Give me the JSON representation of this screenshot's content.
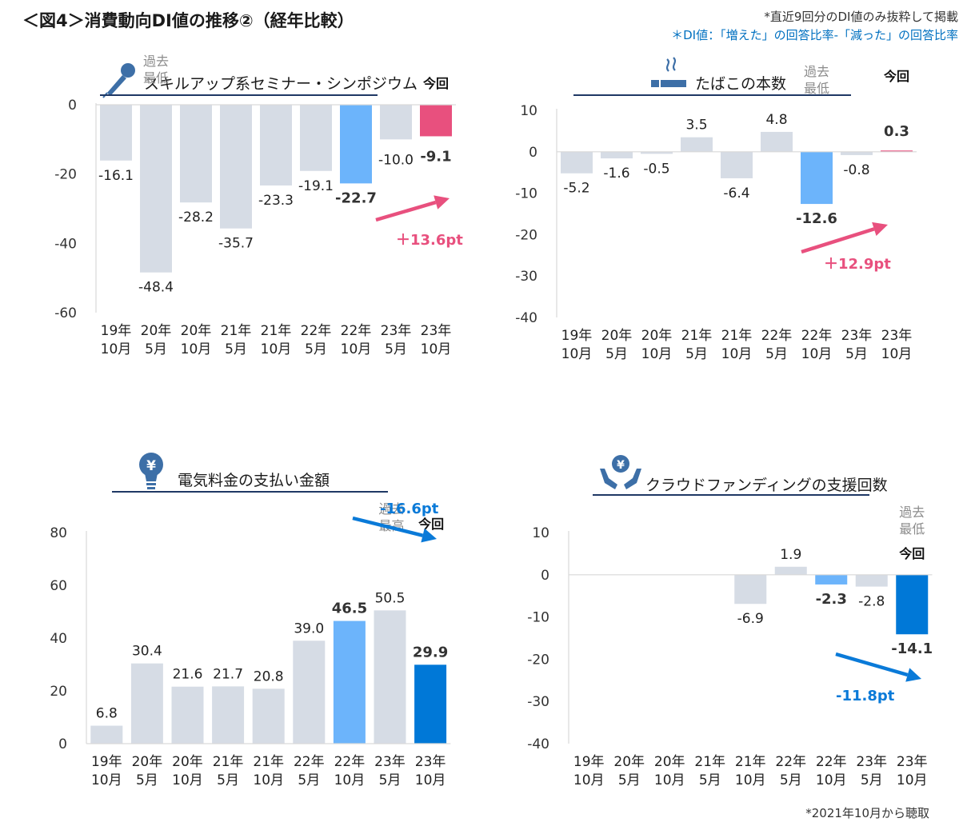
{
  "page": {
    "title": "＜図4＞消費動向DI値の推移②（経年比較）",
    "note_top": "*直近9回分のDI値のみ抜粋して掲載",
    "note_di": "＊DI値：「増えた」の回答比率-「減った」の回答比率",
    "note_bottom": "*2021年10月から聴取"
  },
  "colors": {
    "gray_bar": "#d6dce5",
    "prev_bar": "#6cb4fb",
    "current_up": "#e8507e",
    "current_down": "#0078d7",
    "arrow_up": "#e8507e",
    "arrow_down": "#0a7ad8",
    "title_line": "#1f3864",
    "icon": "#3d6fa7"
  },
  "chart_data": [
    {
      "id": "seminar",
      "type": "bar",
      "title": "スキルアップ系セミナー・シンポジウム",
      "icon": "microphone-icon",
      "categories": [
        [
          "19年",
          "10月"
        ],
        [
          "20年",
          "5月"
        ],
        [
          "20年",
          "10月"
        ],
        [
          "21年",
          "5月"
        ],
        [
          "21年",
          "10月"
        ],
        [
          "22年",
          "5月"
        ],
        [
          "22年",
          "10月"
        ],
        [
          "23年",
          "5月"
        ],
        [
          "23年",
          "10月"
        ]
      ],
      "values": [
        -16.1,
        -48.4,
        -28.2,
        -35.7,
        -23.3,
        -19.1,
        -22.7,
        -10.0,
        -9.1
      ],
      "value_labels": [
        "-16.1",
        "-48.4",
        "-28.2",
        "-35.7",
        "-23.3",
        "-19.1",
        "-22.7",
        "-10.0",
        "-9.1"
      ],
      "ylim": [
        -60,
        0
      ],
      "yticks": [
        0,
        -20,
        -40,
        -60
      ],
      "highlight": {
        "previous_index": 6,
        "current_index": 8,
        "current_direction": "up"
      },
      "callouts": [
        {
          "index": 1,
          "text": [
            "過去",
            "最低"
          ]
        },
        {
          "index": 8,
          "text": [
            "今回"
          ],
          "bold": true
        }
      ],
      "change": {
        "text": "＋13.6pt",
        "direction": "up"
      }
    },
    {
      "id": "tobacco",
      "type": "bar",
      "title": "たばこの本数",
      "icon": "cigarette-icon",
      "categories": [
        [
          "19年",
          "10月"
        ],
        [
          "20年",
          "5月"
        ],
        [
          "20年",
          "10月"
        ],
        [
          "21年",
          "5月"
        ],
        [
          "21年",
          "10月"
        ],
        [
          "22年",
          "5月"
        ],
        [
          "22年",
          "10月"
        ],
        [
          "23年",
          "5月"
        ],
        [
          "23年",
          "10月"
        ]
      ],
      "values": [
        -5.2,
        -1.6,
        -0.5,
        3.5,
        -6.4,
        4.8,
        -12.6,
        -0.8,
        0.3
      ],
      "value_labels": [
        "-5.2",
        "-1.6",
        "-0.5",
        "3.5",
        "-6.4",
        "4.8",
        "-12.6",
        "-0.8",
        "0.3"
      ],
      "ylim": [
        -40,
        10
      ],
      "yticks": [
        10,
        0,
        -10,
        -20,
        -30,
        -40
      ],
      "highlight": {
        "previous_index": 6,
        "current_index": 8,
        "current_direction": "up"
      },
      "callouts": [
        {
          "index": 6,
          "text": [
            "過去",
            "最低"
          ]
        },
        {
          "index": 8,
          "text": [
            "今回"
          ],
          "bold": true
        }
      ],
      "change": {
        "text": "＋12.9pt",
        "direction": "up"
      }
    },
    {
      "id": "electricity",
      "type": "bar",
      "title": "電気料金の支払い金額",
      "icon": "yen-lightbulb-icon",
      "categories": [
        [
          "19年",
          "10月"
        ],
        [
          "20年",
          "5月"
        ],
        [
          "20年",
          "10月"
        ],
        [
          "21年",
          "5月"
        ],
        [
          "21年",
          "10月"
        ],
        [
          "22年",
          "5月"
        ],
        [
          "22年",
          "10月"
        ],
        [
          "23年",
          "5月"
        ],
        [
          "23年",
          "10月"
        ]
      ],
      "values": [
        6.8,
        30.4,
        21.6,
        21.7,
        20.8,
        39.0,
        46.5,
        50.5,
        29.9
      ],
      "value_labels": [
        "6.8",
        "30.4",
        "21.6",
        "21.7",
        "20.8",
        "39.0",
        "46.5",
        "50.5",
        "29.9"
      ],
      "ylim": [
        0,
        80
      ],
      "yticks": [
        80,
        60,
        40,
        20,
        0
      ],
      "highlight": {
        "previous_index": 6,
        "current_index": 8,
        "current_direction": "down"
      },
      "callouts": [
        {
          "index": 7,
          "text": [
            "過去",
            "最高"
          ]
        },
        {
          "index": 8,
          "text": [
            "今回"
          ],
          "bold": true
        }
      ],
      "change": {
        "text": "-16.6pt",
        "direction": "down"
      }
    },
    {
      "id": "crowdfunding",
      "type": "bar",
      "title": "クラウドファンディングの支援回数",
      "icon": "hands-yen-icon",
      "categories": [
        [
          "19年",
          "10月"
        ],
        [
          "20年",
          "5月"
        ],
        [
          "20年",
          "10月"
        ],
        [
          "21年",
          "5月"
        ],
        [
          "21年",
          "10月"
        ],
        [
          "22年",
          "5月"
        ],
        [
          "22年",
          "10月"
        ],
        [
          "23年",
          "5月"
        ],
        [
          "23年",
          "10月"
        ]
      ],
      "values": [
        null,
        null,
        null,
        null,
        -6.9,
        1.9,
        -2.3,
        -2.8,
        -14.1
      ],
      "value_labels": [
        "",
        "",
        "",
        "",
        "-6.9",
        "1.9",
        "-2.3",
        "-2.8",
        "-14.1"
      ],
      "ylim": [
        -40,
        10
      ],
      "yticks": [
        10,
        0,
        -10,
        -20,
        -30,
        -40
      ],
      "highlight": {
        "previous_index": 6,
        "current_index": 8,
        "current_direction": "down"
      },
      "callouts": [
        {
          "index": 8,
          "text": [
            "過去",
            "最低"
          ]
        },
        {
          "index": 8,
          "text": [
            "今回"
          ],
          "bold": true
        }
      ],
      "change": {
        "text": "-11.8pt",
        "direction": "down"
      }
    }
  ]
}
